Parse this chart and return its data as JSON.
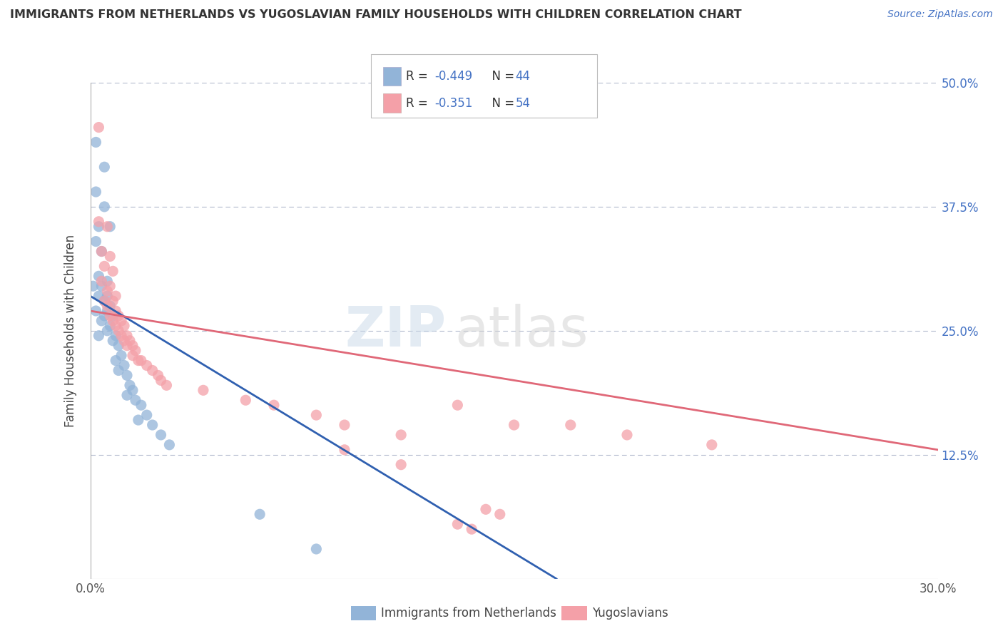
{
  "title": "IMMIGRANTS FROM NETHERLANDS VS YUGOSLAVIAN FAMILY HOUSEHOLDS WITH CHILDREN CORRELATION CHART",
  "source": "Source: ZipAtlas.com",
  "ylabel": "Family Households with Children",
  "xlim": [
    0.0,
    0.3
  ],
  "ylim": [
    0.0,
    0.5
  ],
  "background_color": "#ffffff",
  "grid_color": "#b0b8cc",
  "watermark_zip": "ZIP",
  "watermark_atlas": "atlas",
  "accent_color": "#4472c4",
  "blue_color": "#92b4d8",
  "pink_color": "#f4a0a8",
  "blue_line_color": "#3060b0",
  "pink_line_color": "#e06878",
  "blue_scatter": [
    [
      0.002,
      0.44
    ],
    [
      0.005,
      0.415
    ],
    [
      0.002,
      0.39
    ],
    [
      0.005,
      0.375
    ],
    [
      0.003,
      0.355
    ],
    [
      0.007,
      0.355
    ],
    [
      0.002,
      0.34
    ],
    [
      0.004,
      0.33
    ],
    [
      0.003,
      0.305
    ],
    [
      0.006,
      0.3
    ],
    [
      0.001,
      0.295
    ],
    [
      0.004,
      0.295
    ],
    [
      0.003,
      0.285
    ],
    [
      0.006,
      0.285
    ],
    [
      0.005,
      0.28
    ],
    [
      0.007,
      0.275
    ],
    [
      0.002,
      0.27
    ],
    [
      0.006,
      0.27
    ],
    [
      0.005,
      0.265
    ],
    [
      0.008,
      0.265
    ],
    [
      0.004,
      0.26
    ],
    [
      0.007,
      0.255
    ],
    [
      0.006,
      0.25
    ],
    [
      0.009,
      0.245
    ],
    [
      0.003,
      0.245
    ],
    [
      0.008,
      0.24
    ],
    [
      0.01,
      0.235
    ],
    [
      0.011,
      0.225
    ],
    [
      0.009,
      0.22
    ],
    [
      0.012,
      0.215
    ],
    [
      0.01,
      0.21
    ],
    [
      0.013,
      0.205
    ],
    [
      0.014,
      0.195
    ],
    [
      0.015,
      0.19
    ],
    [
      0.013,
      0.185
    ],
    [
      0.016,
      0.18
    ],
    [
      0.018,
      0.175
    ],
    [
      0.02,
      0.165
    ],
    [
      0.017,
      0.16
    ],
    [
      0.022,
      0.155
    ],
    [
      0.025,
      0.145
    ],
    [
      0.028,
      0.135
    ],
    [
      0.06,
      0.065
    ],
    [
      0.08,
      0.03
    ]
  ],
  "pink_scatter": [
    [
      0.003,
      0.455
    ],
    [
      0.003,
      0.36
    ],
    [
      0.006,
      0.355
    ],
    [
      0.004,
      0.33
    ],
    [
      0.007,
      0.325
    ],
    [
      0.005,
      0.315
    ],
    [
      0.008,
      0.31
    ],
    [
      0.004,
      0.3
    ],
    [
      0.007,
      0.295
    ],
    [
      0.006,
      0.29
    ],
    [
      0.009,
      0.285
    ],
    [
      0.005,
      0.28
    ],
    [
      0.008,
      0.28
    ],
    [
      0.006,
      0.275
    ],
    [
      0.009,
      0.27
    ],
    [
      0.007,
      0.265
    ],
    [
      0.01,
      0.265
    ],
    [
      0.008,
      0.26
    ],
    [
      0.011,
      0.26
    ],
    [
      0.009,
      0.255
    ],
    [
      0.012,
      0.255
    ],
    [
      0.01,
      0.25
    ],
    [
      0.013,
      0.245
    ],
    [
      0.011,
      0.245
    ],
    [
      0.014,
      0.24
    ],
    [
      0.012,
      0.24
    ],
    [
      0.015,
      0.235
    ],
    [
      0.013,
      0.235
    ],
    [
      0.016,
      0.23
    ],
    [
      0.015,
      0.225
    ],
    [
      0.017,
      0.22
    ],
    [
      0.018,
      0.22
    ],
    [
      0.02,
      0.215
    ],
    [
      0.022,
      0.21
    ],
    [
      0.024,
      0.205
    ],
    [
      0.025,
      0.2
    ],
    [
      0.027,
      0.195
    ],
    [
      0.04,
      0.19
    ],
    [
      0.055,
      0.18
    ],
    [
      0.065,
      0.175
    ],
    [
      0.08,
      0.165
    ],
    [
      0.09,
      0.155
    ],
    [
      0.11,
      0.145
    ],
    [
      0.13,
      0.175
    ],
    [
      0.15,
      0.155
    ],
    [
      0.17,
      0.155
    ],
    [
      0.19,
      0.145
    ],
    [
      0.22,
      0.135
    ],
    [
      0.09,
      0.13
    ],
    [
      0.11,
      0.115
    ],
    [
      0.14,
      0.07
    ],
    [
      0.145,
      0.065
    ],
    [
      0.13,
      0.055
    ],
    [
      0.135,
      0.05
    ]
  ],
  "blue_line_x": [
    0.0,
    0.165
  ],
  "blue_line_y": [
    0.285,
    0.0
  ],
  "pink_line_x": [
    0.0,
    0.3
  ],
  "pink_line_y": [
    0.27,
    0.13
  ],
  "legend_labels": [
    "Immigrants from Netherlands",
    "Yugoslavians"
  ]
}
